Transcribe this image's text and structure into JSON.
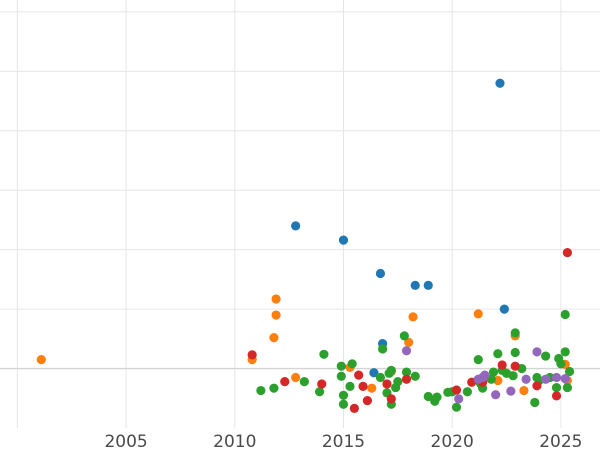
{
  "chart_data": {
    "type": "scatter",
    "title": "",
    "xlabel": "",
    "ylabel": "",
    "xlim": [
      1999.2,
      2026.8
    ],
    "ylim": [
      -1.0,
      6.2
    ],
    "x_ticks": [
      2005,
      2010,
      2015,
      2020,
      2025
    ],
    "y_gridlines": [
      0,
      1,
      2,
      3,
      4,
      5,
      6
    ],
    "grid": true,
    "legend": "none",
    "colors": [
      "#1f77b4",
      "#ff7f0e",
      "#2ca02c",
      "#d62728",
      "#9467bd"
    ],
    "series": [
      {
        "color": "#1f77b4",
        "points": [
          [
            2022.2,
            4.8
          ],
          [
            2012.8,
            2.4
          ],
          [
            2015.0,
            2.16
          ],
          [
            2016.7,
            1.6
          ],
          [
            2018.3,
            1.4
          ],
          [
            2018.9,
            1.4
          ],
          [
            2022.4,
            1.0
          ],
          [
            2016.8,
            0.42
          ],
          [
            2016.4,
            -0.07
          ]
        ]
      },
      {
        "color": "#ff7f0e",
        "points": [
          [
            2001.1,
            0.15
          ],
          [
            2010.8,
            0.15
          ],
          [
            2011.8,
            0.52
          ],
          [
            2011.9,
            0.9
          ],
          [
            2011.9,
            1.17
          ],
          [
            2012.8,
            -0.15
          ],
          [
            2015.3,
            0.02
          ],
          [
            2016.3,
            -0.33
          ],
          [
            2017.2,
            -0.05
          ],
          [
            2018.0,
            0.44
          ],
          [
            2018.2,
            0.87
          ],
          [
            2021.2,
            0.92
          ],
          [
            2022.1,
            -0.2
          ],
          [
            2022.9,
            0.55
          ],
          [
            2023.3,
            -0.37
          ],
          [
            2025.2,
            0.07
          ],
          [
            2025.3,
            -0.2
          ]
        ]
      },
      {
        "color": "#2ca02c",
        "points": [
          [
            2011.2,
            -0.37
          ],
          [
            2011.8,
            -0.33
          ],
          [
            2013.2,
            -0.22
          ],
          [
            2013.9,
            -0.39
          ],
          [
            2014.1,
            0.24
          ],
          [
            2014.9,
            -0.13
          ],
          [
            2014.9,
            0.04
          ],
          [
            2015.0,
            -0.45
          ],
          [
            2015.0,
            -0.6
          ],
          [
            2015.3,
            -0.3
          ],
          [
            2015.4,
            0.08
          ],
          [
            2016.7,
            -0.15
          ],
          [
            2016.8,
            0.33
          ],
          [
            2017.0,
            -0.41
          ],
          [
            2017.1,
            -0.08
          ],
          [
            2017.2,
            -0.6
          ],
          [
            2017.2,
            -0.03
          ],
          [
            2017.4,
            -0.32
          ],
          [
            2017.5,
            -0.22
          ],
          [
            2017.8,
            0.55
          ],
          [
            2017.9,
            -0.06
          ],
          [
            2018.3,
            -0.13
          ],
          [
            2018.9,
            -0.47
          ],
          [
            2019.2,
            -0.55
          ],
          [
            2019.3,
            -0.48
          ],
          [
            2019.8,
            -0.4
          ],
          [
            2020.0,
            -0.39
          ],
          [
            2020.2,
            -0.65
          ],
          [
            2020.7,
            -0.39
          ],
          [
            2021.2,
            0.15
          ],
          [
            2021.3,
            -0.25
          ],
          [
            2021.4,
            -0.33
          ],
          [
            2021.8,
            -0.18
          ],
          [
            2021.9,
            -0.06
          ],
          [
            2022.1,
            0.25
          ],
          [
            2022.3,
            -0.03
          ],
          [
            2022.5,
            -0.08
          ],
          [
            2022.8,
            -0.12
          ],
          [
            2022.9,
            0.6
          ],
          [
            2022.9,
            0.27
          ],
          [
            2023.2,
            0.0
          ],
          [
            2023.8,
            -0.57
          ],
          [
            2023.9,
            -0.15
          ],
          [
            2024.0,
            -0.2
          ],
          [
            2024.3,
            0.21
          ],
          [
            2024.5,
            -0.15
          ],
          [
            2024.8,
            -0.32
          ],
          [
            2024.9,
            0.17
          ],
          [
            2025.0,
            0.08
          ],
          [
            2025.2,
            0.28
          ],
          [
            2025.2,
            0.91
          ],
          [
            2025.3,
            -0.32
          ],
          [
            2025.4,
            -0.05
          ]
        ]
      },
      {
        "color": "#d62728",
        "points": [
          [
            2010.8,
            0.23
          ],
          [
            2012.3,
            -0.22
          ],
          [
            2014.0,
            -0.26
          ],
          [
            2015.5,
            -0.67
          ],
          [
            2015.7,
            -0.11
          ],
          [
            2015.9,
            -0.3
          ],
          [
            2016.1,
            -0.54
          ],
          [
            2017.0,
            -0.26
          ],
          [
            2017.2,
            -0.51
          ],
          [
            2017.9,
            -0.18
          ],
          [
            2020.2,
            -0.36
          ],
          [
            2020.9,
            -0.23
          ],
          [
            2021.4,
            -0.23
          ],
          [
            2022.3,
            0.06
          ],
          [
            2022.9,
            0.04
          ],
          [
            2023.9,
            -0.29
          ],
          [
            2024.8,
            -0.46
          ],
          [
            2025.3,
            1.95
          ]
        ]
      },
      {
        "color": "#9467bd",
        "points": [
          [
            2017.9,
            0.3
          ],
          [
            2020.3,
            -0.51
          ],
          [
            2021.2,
            -0.18
          ],
          [
            2021.4,
            -0.15
          ],
          [
            2021.5,
            -0.11
          ],
          [
            2022.0,
            -0.44
          ],
          [
            2022.7,
            -0.38
          ],
          [
            2023.4,
            -0.18
          ],
          [
            2023.9,
            0.28
          ],
          [
            2024.3,
            -0.18
          ],
          [
            2024.8,
            -0.15
          ],
          [
            2025.2,
            -0.17
          ]
        ]
      }
    ]
  }
}
